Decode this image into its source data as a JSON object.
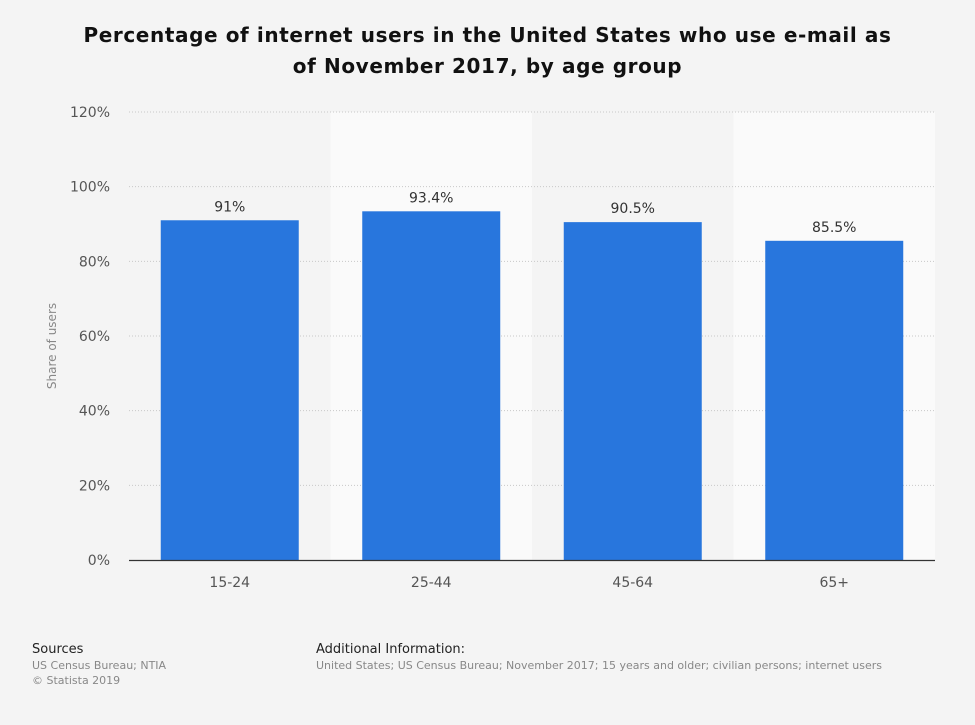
{
  "chart_data": {
    "type": "bar",
    "title": "Percentage of internet users in the United States who use e-mail as of November 2017, by age group",
    "title_lines": [
      "Percentage of internet users in the United States who use e-mail as",
      "of November 2017, by age group"
    ],
    "categories": [
      "15-24",
      "25-44",
      "45-64",
      "65+"
    ],
    "values": [
      91,
      93.4,
      90.5,
      85.5
    ],
    "data_labels": [
      "91%",
      "93.4%",
      "90.5%",
      "85.5%"
    ],
    "xlabel": "",
    "ylabel": "Share of users",
    "ylim": [
      0,
      120
    ],
    "yticks": [
      0,
      20,
      40,
      60,
      80,
      100,
      120
    ],
    "ytick_labels": [
      "0%",
      "20%",
      "40%",
      "60%",
      "80%",
      "100%",
      "120%"
    ],
    "grid": true,
    "legend": "none",
    "bar_color": "#2876dd"
  },
  "footer": {
    "sources_heading": "Sources",
    "sources_lines": [
      "US Census Bureau; NTIA",
      "© Statista 2019"
    ],
    "additional_heading": "Additional Information:",
    "additional_text": "United States; US Census Bureau; November 2017; 15 years and older; civilian persons; internet users"
  }
}
